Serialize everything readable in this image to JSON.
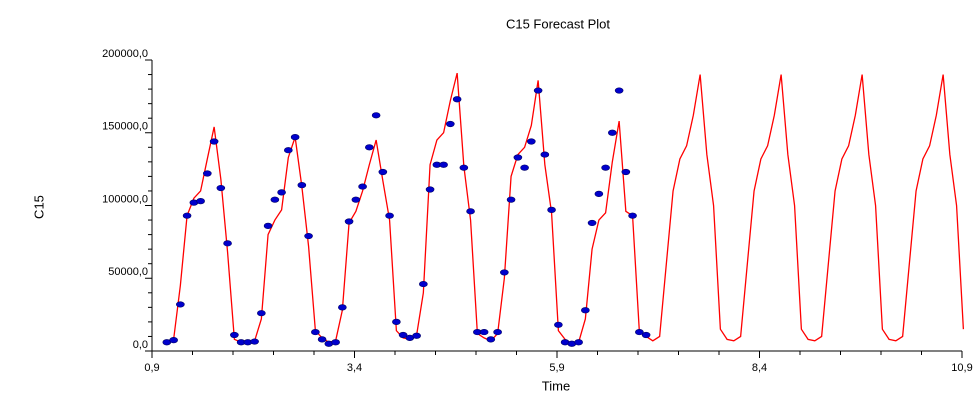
{
  "chart_data": {
    "type": "line",
    "title": "C15 Forecast Plot",
    "x_label": "Time",
    "y_label": "C15",
    "xlim": [
      0.9,
      10.9
    ],
    "ylim": [
      0,
      200000
    ],
    "xticks": [
      {
        "value": 0.9,
        "label": "0,9"
      },
      {
        "value": 3.4,
        "label": "3,4"
      },
      {
        "value": 5.9,
        "label": "5,9"
      },
      {
        "value": 8.4,
        "label": "8,4"
      },
      {
        "value": 10.9,
        "label": "10,9"
      }
    ],
    "yticks": [
      {
        "value": 0,
        "label": "0,0"
      },
      {
        "value": 50000,
        "label": "50000,0"
      },
      {
        "value": 100000,
        "label": "100000,0"
      },
      {
        "value": 150000,
        "label": "150000,0"
      },
      {
        "value": 200000,
        "label": "200000,0"
      }
    ],
    "xminor_ticks": [
      1.4,
      1.9,
      2.4,
      2.9,
      3.9,
      4.4,
      4.9,
      5.4,
      6.4,
      6.9,
      7.4,
      7.9,
      8.9,
      9.4,
      9.9,
      10.4
    ],
    "yminor_ticks": [
      10000,
      20000,
      30000,
      40000,
      60000,
      70000,
      80000,
      90000,
      110000,
      120000,
      130000,
      140000,
      160000,
      170000,
      180000,
      190000
    ],
    "series": [
      {
        "type": "line",
        "color": "#ff0000",
        "x": [
          1.083,
          1.167,
          1.25,
          1.333,
          1.417,
          1.5,
          1.583,
          1.667,
          1.75,
          1.833,
          1.917,
          2,
          2.083,
          2.167,
          2.25,
          2.333,
          2.417,
          2.5,
          2.583,
          2.667,
          2.75,
          2.833,
          2.917,
          3,
          3.083,
          3.167,
          3.25,
          3.333,
          3.417,
          3.5,
          3.583,
          3.667,
          3.75,
          3.833,
          3.917,
          4,
          4.083,
          4.167,
          4.25,
          4.333,
          4.417,
          4.5,
          4.583,
          4.667,
          4.75,
          4.833,
          4.917,
          5,
          5.083,
          5.167,
          5.25,
          5.333,
          5.417,
          5.5,
          5.583,
          5.667,
          5.75,
          5.833,
          5.917,
          6,
          6.083,
          6.167,
          6.25,
          6.333,
          6.417,
          6.5,
          6.583,
          6.667,
          6.75,
          6.833,
          6.917,
          7,
          7.083,
          7.167,
          7.25,
          7.333,
          7.417,
          7.5,
          7.583,
          7.667,
          7.75,
          7.833,
          7.917,
          8,
          8.083,
          8.167,
          8.25,
          8.333,
          8.417,
          8.5,
          8.583,
          8.667,
          8.75,
          8.833,
          8.917,
          9,
          9.083,
          9.167,
          9.25,
          9.333,
          9.417,
          9.5,
          9.583,
          9.667,
          9.75,
          9.833,
          9.917,
          10,
          10.083,
          10.167,
          10.25,
          10.333,
          10.417,
          10.5,
          10.583,
          10.667,
          10.75,
          10.833,
          10.917
        ],
        "values": [
          6000,
          8000,
          45000,
          93000,
          105000,
          110000,
          132000,
          154000,
          118000,
          68000,
          8000,
          6000,
          6000,
          7000,
          22000,
          80000,
          90000,
          97000,
          133000,
          147000,
          113000,
          72000,
          14000,
          9000,
          6000,
          7000,
          28000,
          88000,
          96000,
          110000,
          128000,
          145000,
          117000,
          90000,
          14000,
          9000,
          8000,
          11000,
          40000,
          128000,
          145000,
          150000,
          172000,
          191000,
          127000,
          90000,
          12000,
          9000,
          7000,
          12000,
          50000,
          120000,
          135000,
          140000,
          155000,
          186000,
          128000,
          95000,
          14000,
          8000,
          5000,
          6000,
          22000,
          70000,
          90000,
          95000,
          130000,
          158000,
          96000,
          93000,
          13000,
          10000,
          7000,
          10000,
          60000,
          110000,
          132000,
          141000,
          162000,
          190000,
          135000,
          100000,
          15000,
          8000,
          7000,
          10000,
          60000,
          110000,
          132000,
          141000,
          162000,
          190000,
          135000,
          100000,
          15000,
          8000,
          7000,
          10000,
          60000,
          110000,
          132000,
          141000,
          162000,
          190000,
          135000,
          100000,
          15000,
          8000,
          7000,
          10000,
          60000,
          110000,
          132000,
          141000,
          162000,
          190000,
          135000,
          100000,
          15000
        ]
      },
      {
        "type": "scatter",
        "color": "#0000cc",
        "x": [
          1.083,
          1.167,
          1.25,
          1.333,
          1.417,
          1.5,
          1.583,
          1.667,
          1.75,
          1.833,
          1.917,
          2,
          2.083,
          2.167,
          2.25,
          2.333,
          2.417,
          2.5,
          2.583,
          2.667,
          2.75,
          2.833,
          2.917,
          3,
          3.083,
          3.167,
          3.25,
          3.333,
          3.417,
          3.5,
          3.583,
          3.667,
          3.75,
          3.833,
          3.917,
          4,
          4.083,
          4.167,
          4.25,
          4.333,
          4.417,
          4.5,
          4.583,
          4.667,
          4.75,
          4.833,
          4.917,
          5,
          5.083,
          5.167,
          5.25,
          5.333,
          5.417,
          5.5,
          5.583,
          5.667,
          5.75,
          5.833,
          5.917,
          6,
          6.083,
          6.167,
          6.25,
          6.333,
          6.417,
          6.5,
          6.583,
          6.667,
          6.75,
          6.833,
          6.917,
          7
        ],
        "values": [
          6000,
          7500,
          32000,
          93000,
          102000,
          103000,
          122000,
          144000,
          112000,
          74000,
          11000,
          6000,
          6000,
          6500,
          26000,
          86000,
          104000,
          109000,
          138000,
          147000,
          114000,
          79000,
          13000,
          8000,
          5000,
          6000,
          30000,
          89000,
          104000,
          113000,
          140000,
          162000,
          123000,
          93000,
          20000,
          11000,
          9000,
          10500,
          46000,
          111000,
          128000,
          128000,
          156000,
          173000,
          126000,
          96000,
          13000,
          13000,
          8000,
          13000,
          54000,
          104000,
          133000,
          126000,
          144000,
          179000,
          135000,
          97000,
          18000,
          6000,
          5000,
          6000,
          28000,
          88000,
          108000,
          126000,
          150000,
          179000,
          123000,
          93000,
          13000,
          11000
        ]
      }
    ]
  }
}
